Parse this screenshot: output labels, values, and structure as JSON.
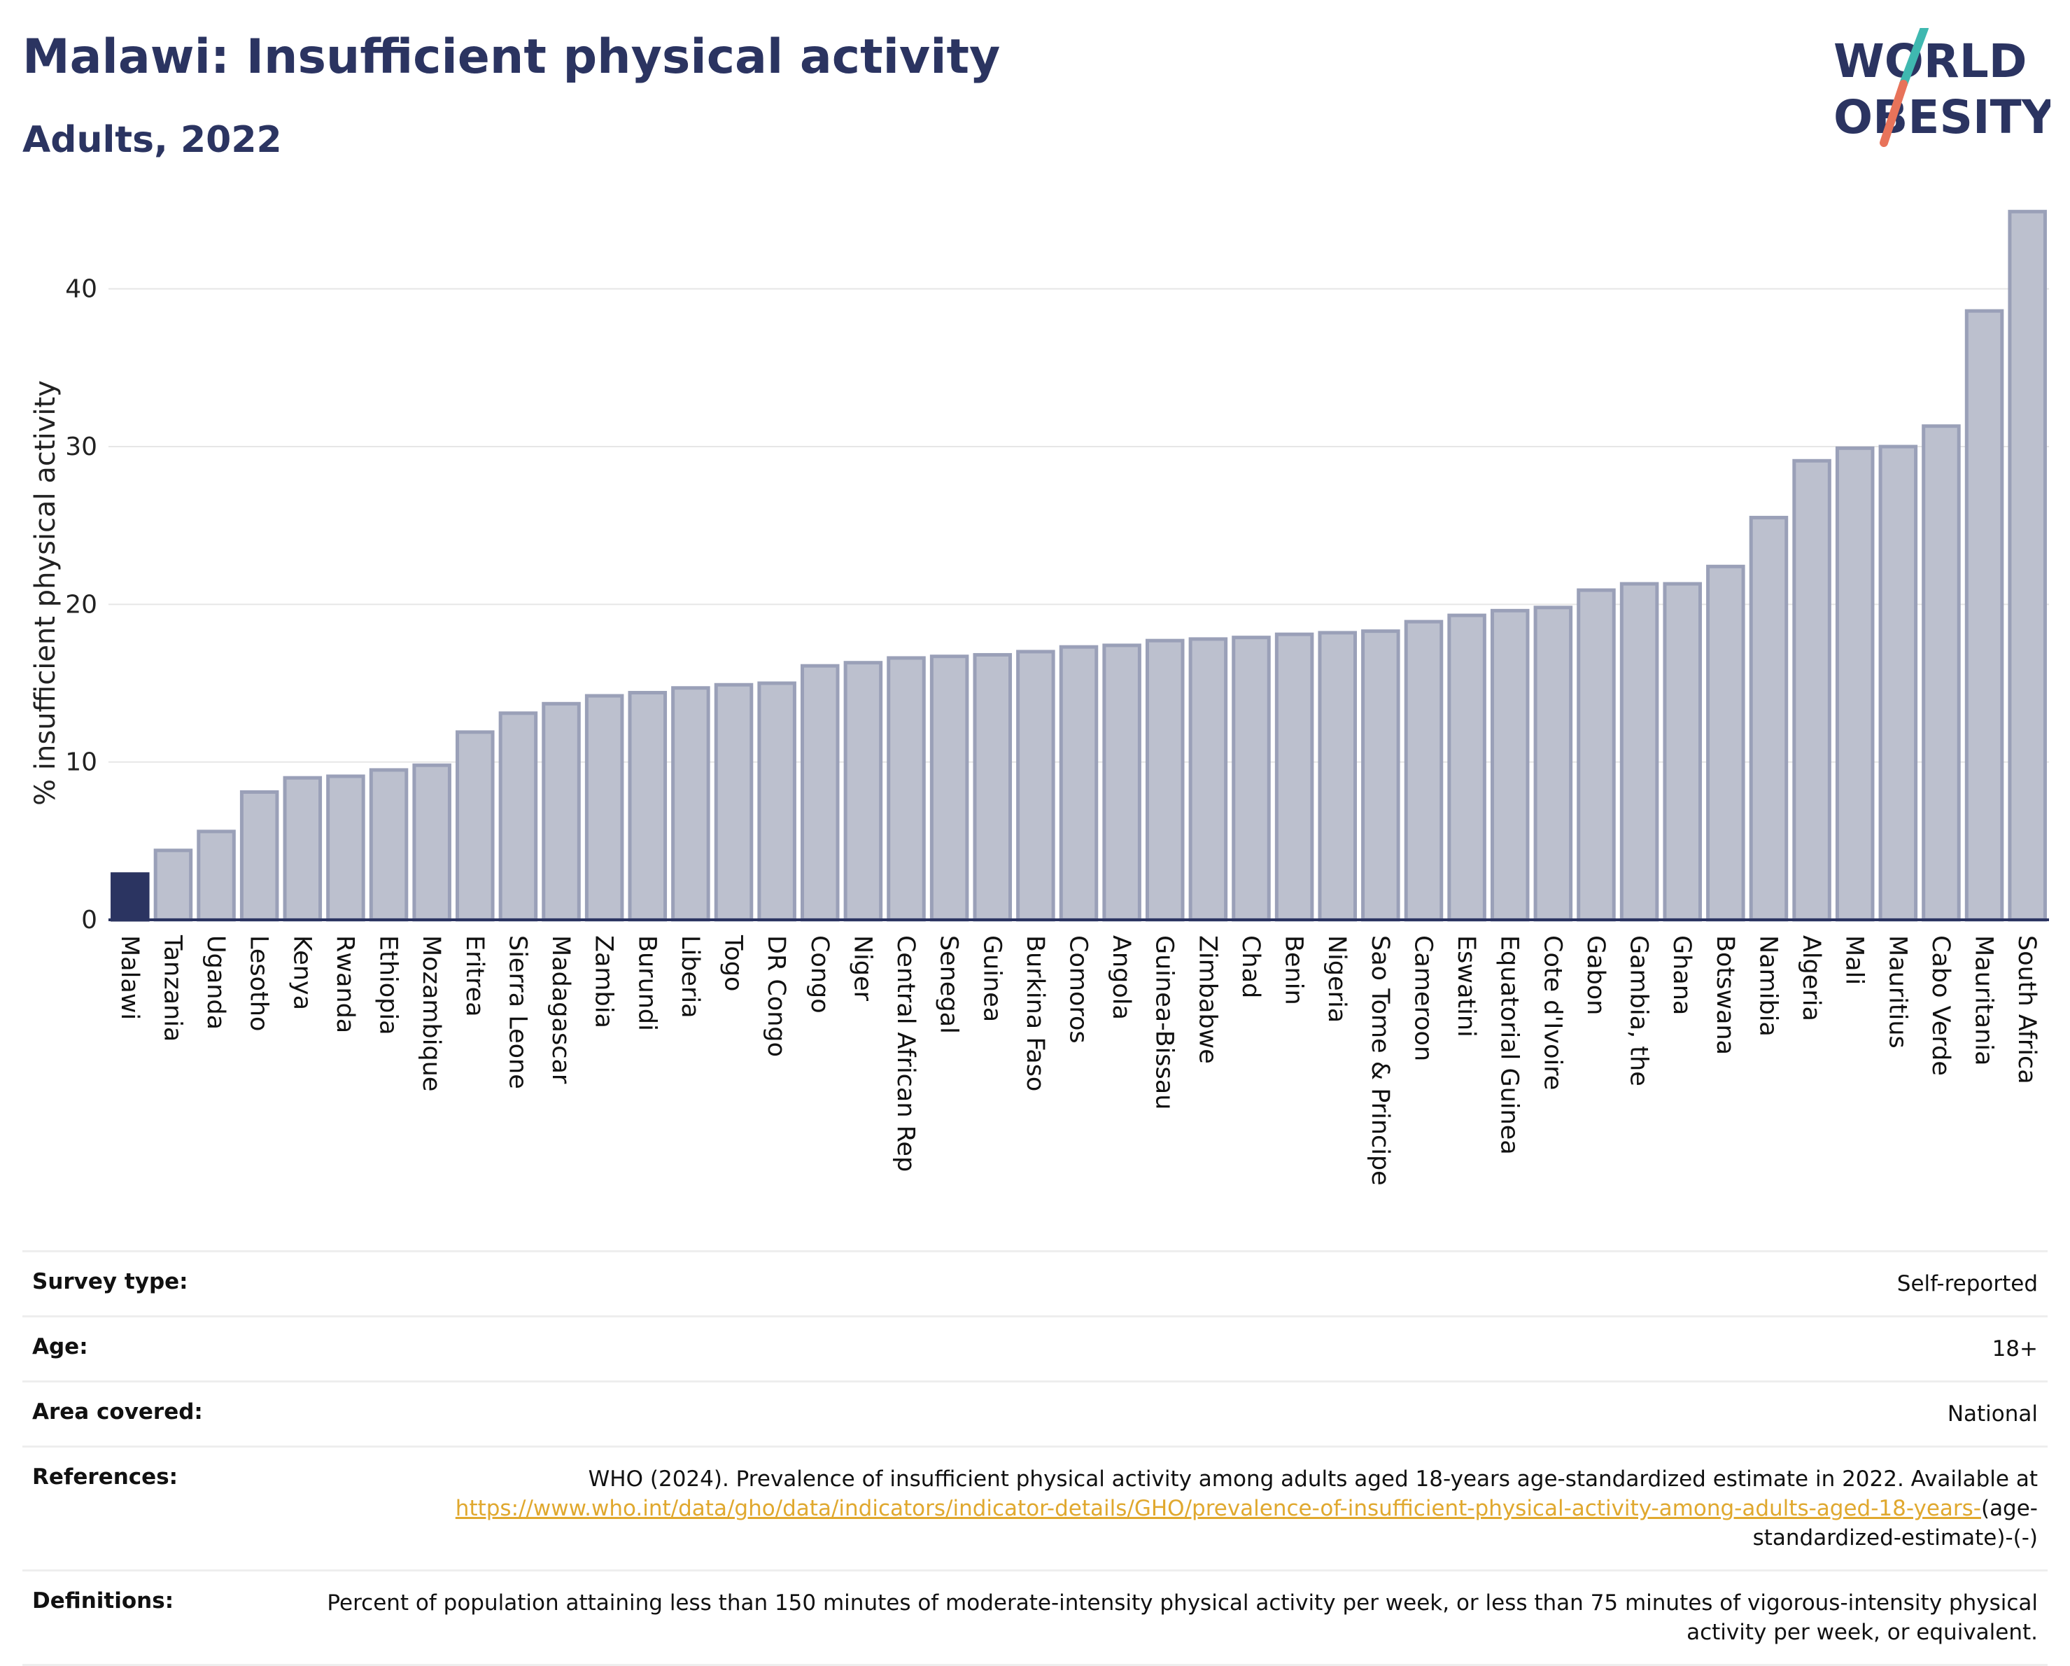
{
  "header": {
    "title": "Malawi: Insufficient physical activity",
    "subtitle": "Adults, 2022"
  },
  "logo": {
    "line1": "WORLD",
    "line2": "OBESITY",
    "colors": {
      "text": "#2b3461",
      "slash_top": "#3fb8b0",
      "slash_bottom": "#e8735a"
    }
  },
  "colors": {
    "highlight": "#2b3461",
    "bar_fill": "#bcc0ce",
    "bar_stroke": "#9aa0b8",
    "grid": "#e6e6e6",
    "axis": "#2b3461"
  },
  "chart_data": {
    "type": "bar",
    "title": "Malawi: Insufficient physical activity",
    "subtitle": "Adults, 2022",
    "xlabel": "",
    "ylabel": "% insufficient physical activity",
    "ylim": [
      0,
      45
    ],
    "yticks": [
      0,
      10,
      20,
      30,
      40
    ],
    "grid": true,
    "highlight": "Malawi",
    "categories": [
      "Malawi",
      "Tanzania",
      "Uganda",
      "Lesotho",
      "Kenya",
      "Rwanda",
      "Ethiopia",
      "Mozambique",
      "Eritrea",
      "Sierra Leone",
      "Madagascar",
      "Zambia",
      "Burundi",
      "Liberia",
      "Togo",
      "DR Congo",
      "Congo",
      "Niger",
      "Central African Rep",
      "Senegal",
      "Guinea",
      "Burkina Faso",
      "Comoros",
      "Angola",
      "Guinea-Bissau",
      "Zimbabwe",
      "Chad",
      "Benin",
      "Nigeria",
      "Sao Tome & Principe",
      "Cameroon",
      "Eswatini",
      "Equatorial Guinea",
      "Cote d'Ivoire",
      "Gabon",
      "Gambia, the",
      "Ghana",
      "Botswana",
      "Namibia",
      "Algeria",
      "Mali",
      "Mauritius",
      "Cabo Verde",
      "Mauritania",
      "South Africa"
    ],
    "values": [
      2.9,
      4.4,
      5.6,
      8.1,
      9.0,
      9.1,
      9.5,
      9.8,
      11.9,
      13.1,
      13.7,
      14.2,
      14.4,
      14.7,
      14.9,
      15.0,
      16.1,
      16.3,
      16.6,
      16.7,
      16.8,
      17.0,
      17.3,
      17.4,
      17.7,
      17.8,
      17.9,
      18.1,
      18.2,
      18.3,
      18.9,
      19.3,
      19.6,
      19.8,
      20.9,
      21.3,
      21.3,
      22.4,
      25.5,
      29.1,
      29.9,
      30.0,
      31.3,
      38.6,
      44.9
    ]
  },
  "meta": {
    "survey_type_label": "Survey type:",
    "survey_type_value": "Self-reported",
    "age_label": "Age:",
    "age_value": "18+",
    "area_label": "Area covered:",
    "area_value": "National",
    "references_label": "References:",
    "references_text": "WHO (2024). Prevalence of insufficient physical activity among adults aged 18-years age-standardized estimate in 2022. Available at",
    "references_link": "https://www.who.int/data/gho/data/indicators/indicator-details/GHO/prevalence-of-insufficient-physical-activity-among-adults-aged-18-years-",
    "references_suffix": "(age-standardized-estimate)-(-)",
    "definitions_label": "Definitions:",
    "definitions_value": "Percent of population attaining less than 150 minutes of moderate-intensity physical activity per week, or less than 75 minutes of vigorous-intensity physical activity per week, or equivalent."
  }
}
